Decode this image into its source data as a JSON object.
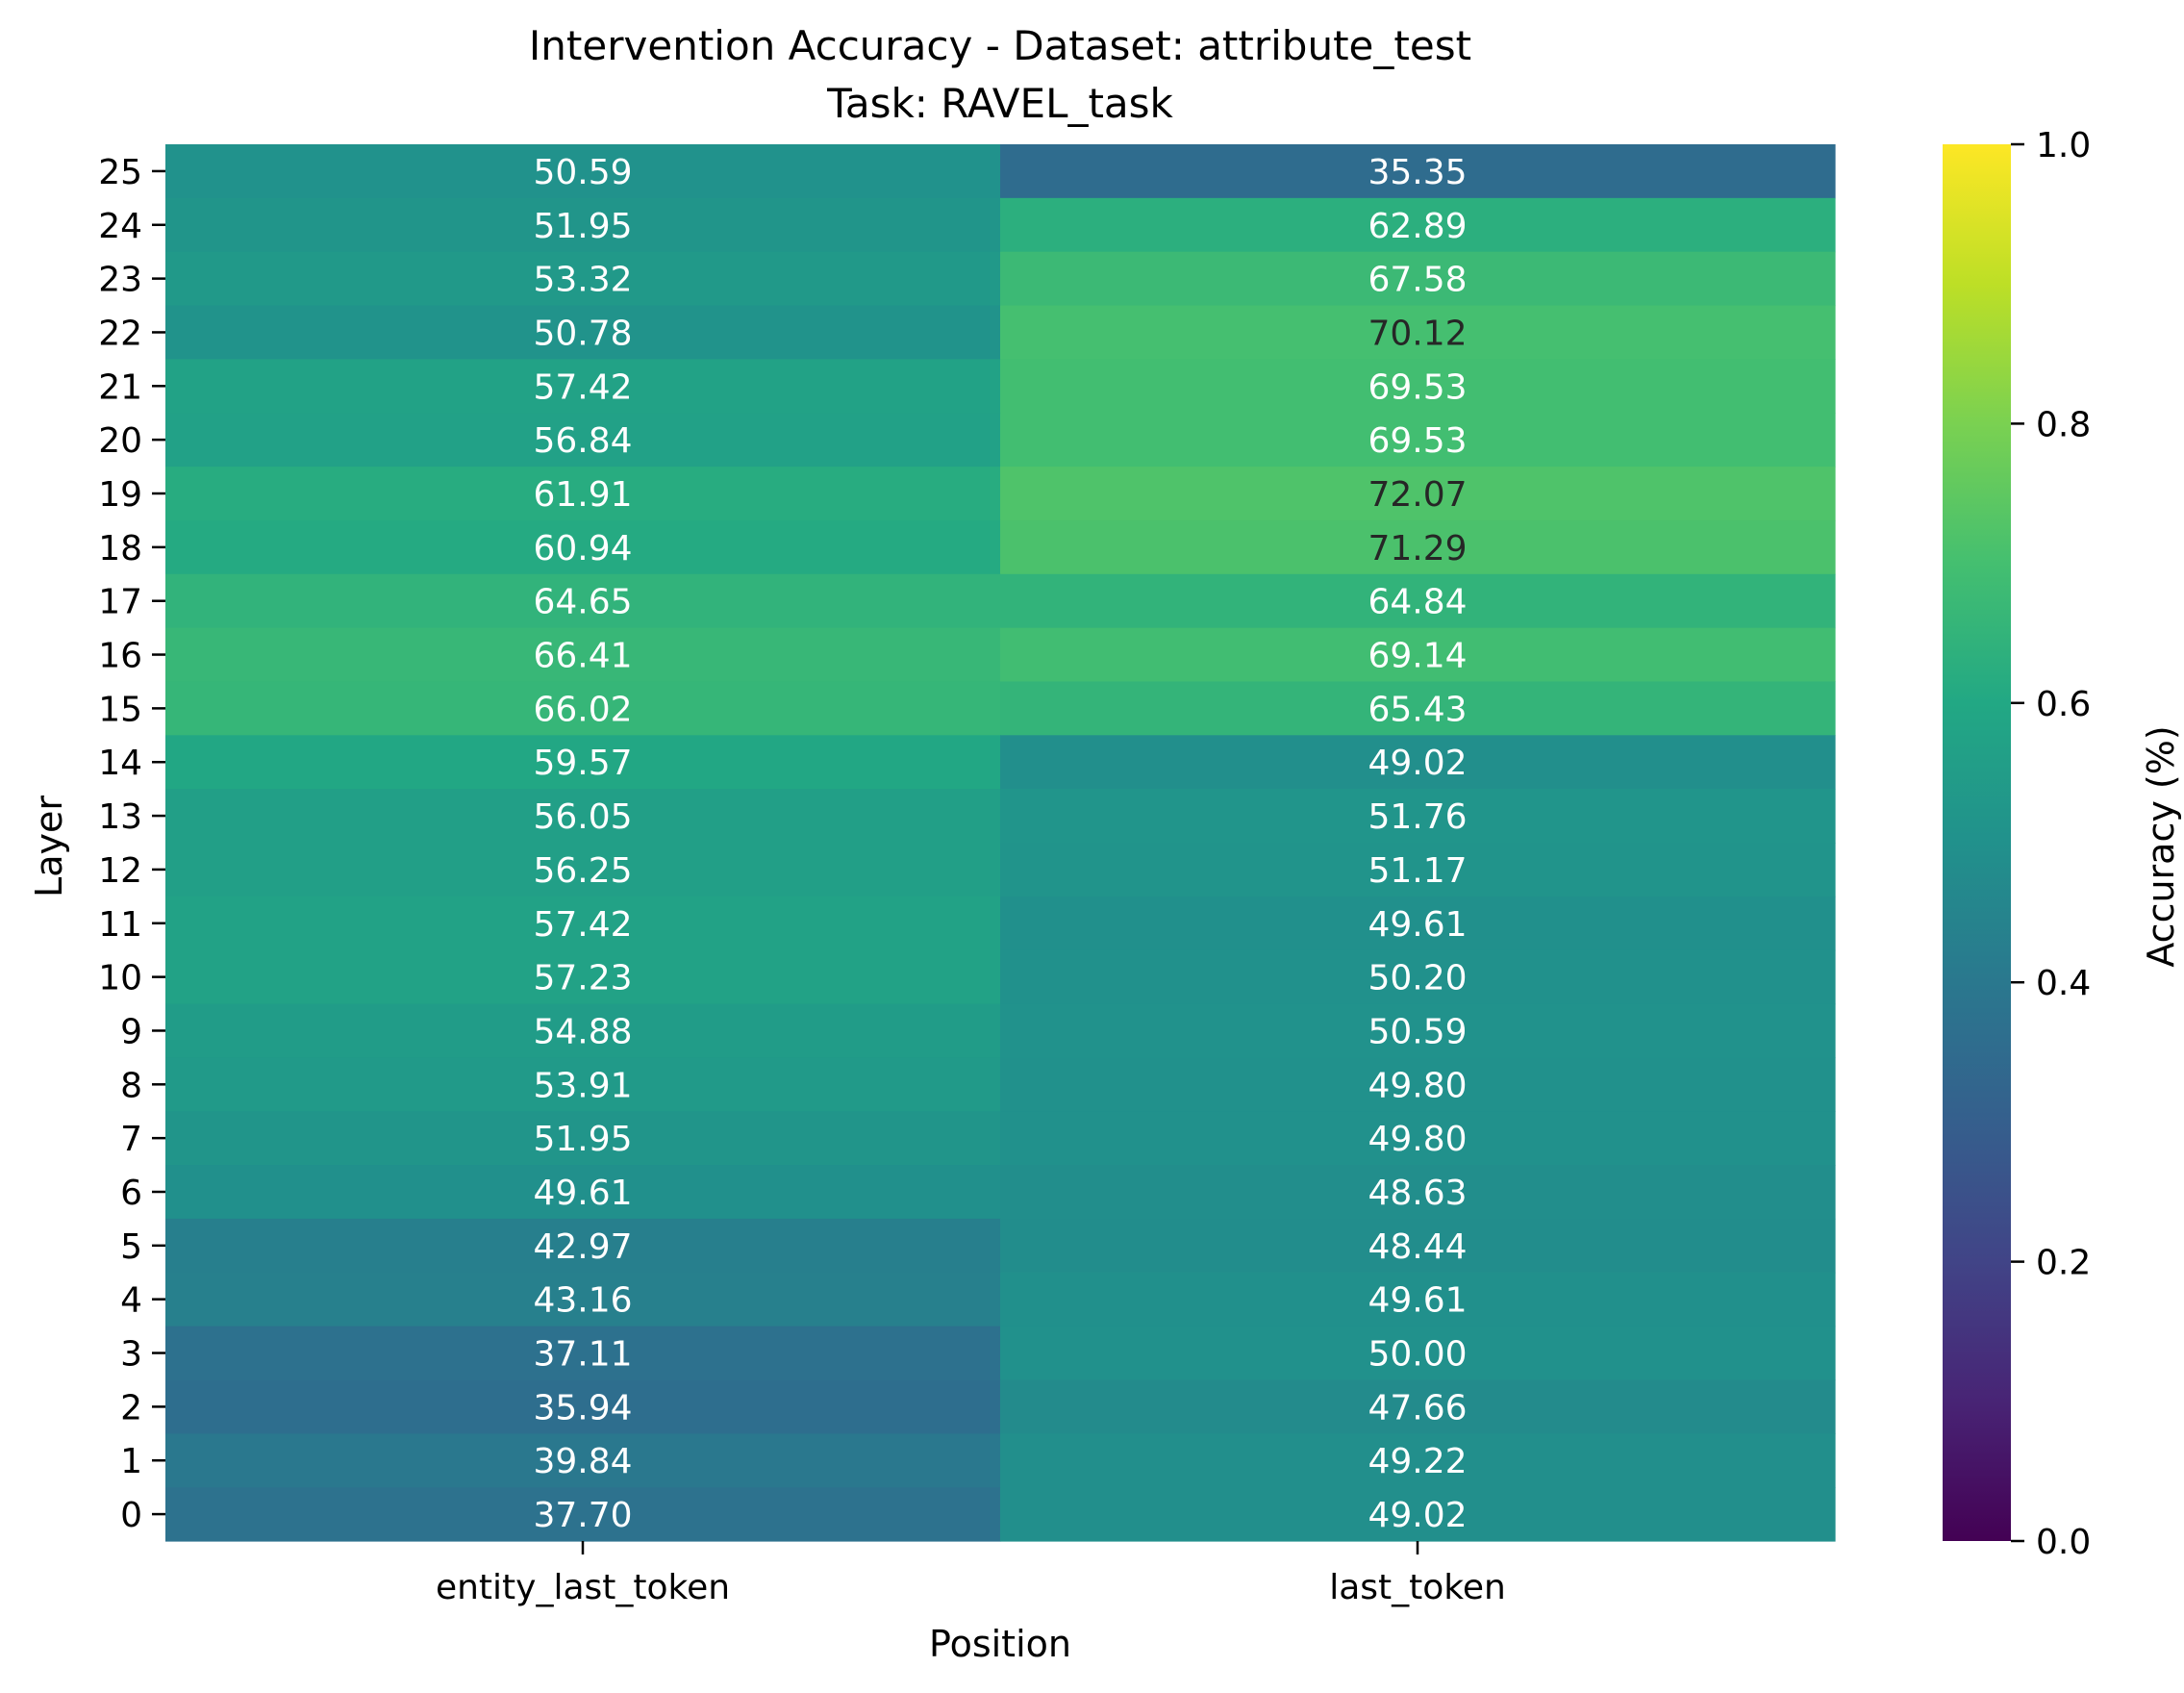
{
  "chart_data": {
    "type": "heatmap",
    "title": "Intervention Accuracy - Dataset: attribute_test",
    "subtitle": "Task: RAVEL_task",
    "xlabel": "Position",
    "ylabel": "Layer",
    "columns": [
      "entity_last_token",
      "last_token"
    ],
    "rows": [
      "25",
      "24",
      "23",
      "22",
      "21",
      "20",
      "19",
      "18",
      "17",
      "16",
      "15",
      "14",
      "13",
      "12",
      "11",
      "10",
      "9",
      "8",
      "7",
      "6",
      "5",
      "4",
      "3",
      "2",
      "1",
      "0"
    ],
    "values": [
      [
        50.59,
        35.35
      ],
      [
        51.95,
        62.89
      ],
      [
        53.32,
        67.58
      ],
      [
        50.78,
        70.12
      ],
      [
        57.42,
        69.53
      ],
      [
        56.84,
        69.53
      ],
      [
        61.91,
        72.07
      ],
      [
        60.94,
        71.29
      ],
      [
        64.65,
        64.84
      ],
      [
        66.41,
        69.14
      ],
      [
        66.02,
        65.43
      ],
      [
        59.57,
        49.02
      ],
      [
        56.05,
        51.76
      ],
      [
        56.25,
        51.17
      ],
      [
        57.42,
        49.61
      ],
      [
        57.23,
        50.2
      ],
      [
        54.88,
        50.59
      ],
      [
        53.91,
        49.8
      ],
      [
        51.95,
        49.8
      ],
      [
        49.61,
        48.63
      ],
      [
        42.97,
        48.44
      ],
      [
        43.16,
        49.61
      ],
      [
        37.11,
        50.0
      ],
      [
        35.94,
        47.66
      ],
      [
        39.84,
        49.22
      ],
      [
        37.7,
        49.02
      ]
    ],
    "value_format": "0.00",
    "colormap": "viridis",
    "colorbar": {
      "label": "Accuracy (%)",
      "range": [
        0.0,
        1.0
      ],
      "ticks": [
        "0.0",
        "0.2",
        "0.4",
        "0.6",
        "0.8",
        "1.0"
      ]
    },
    "grid": false
  }
}
